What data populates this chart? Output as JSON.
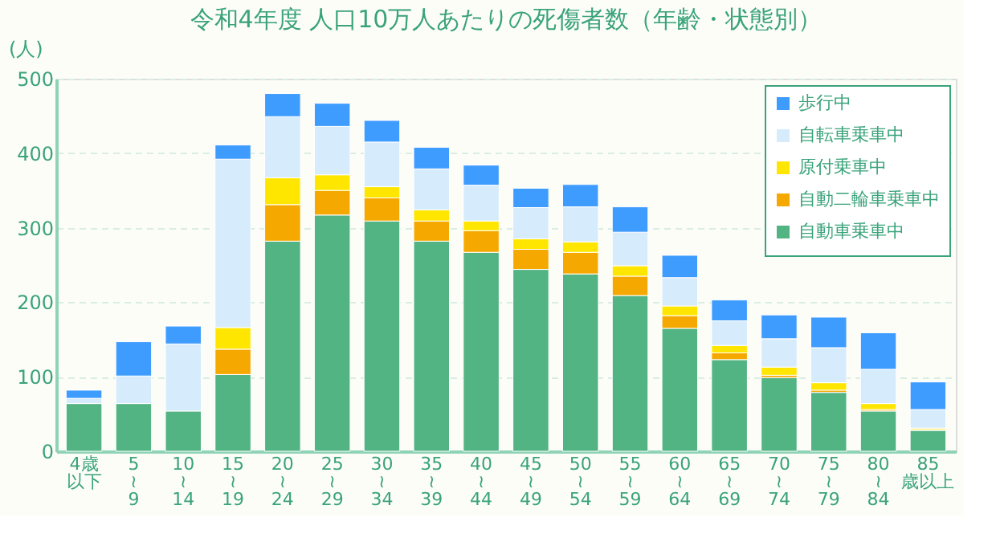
{
  "chart_data": {
    "type": "bar",
    "stacked": true,
    "title": "令和4年度 人口10万人あたりの死傷者数（年齢・状態別）",
    "ylabel": "(人)",
    "categories": [
      "4歳以下",
      "5\n≀\n9",
      "10\n≀\n14",
      "15\n≀\n19",
      "20\n≀\n24",
      "25\n≀\n29",
      "30\n≀\n34",
      "35\n≀\n39",
      "40\n≀\n44",
      "45\n≀\n49",
      "50\n≀\n54",
      "55\n≀\n59",
      "60\n≀\n64",
      "65\n≀\n69",
      "70\n≀\n74",
      "75\n≀\n79",
      "80\n≀\n84",
      "85歳以上"
    ],
    "series": [
      {
        "name": "自動車乗車中",
        "color": "#52b383",
        "values": [
          64,
          64,
          54,
          103,
          282,
          317,
          309,
          282,
          267,
          244,
          238,
          209,
          165,
          123,
          99,
          79,
          54,
          28
        ]
      },
      {
        "name": "自動二輪車乗車中",
        "color": "#f5a800",
        "values": [
          null,
          null,
          null,
          34,
          49,
          33,
          31,
          27,
          29,
          27,
          29,
          26,
          17,
          9,
          3,
          3,
          2,
          1
        ]
      },
      {
        "name": "原付乗車中",
        "color": "#ffe600",
        "values": [
          null,
          null,
          null,
          29,
          36,
          21,
          15,
          15,
          13,
          14,
          14,
          14,
          13,
          10,
          11,
          10,
          8,
          2
        ]
      },
      {
        "name": "自転車乗車中",
        "color": "#d6ecfc",
        "values": [
          7,
          37,
          90,
          226,
          82,
          65,
          60,
          55,
          48,
          42,
          47,
          45,
          38,
          33,
          38,
          47,
          46,
          25
        ]
      },
      {
        "name": "歩行中",
        "color": "#3f9cff",
        "values": [
          11,
          46,
          24,
          19,
          31,
          31,
          29,
          29,
          27,
          26,
          30,
          34,
          30,
          28,
          32,
          41,
          49,
          37
        ]
      }
    ],
    "ylim": [
      0,
      500
    ],
    "yticks": [
      0,
      100,
      200,
      300,
      400,
      500
    ],
    "grid": "y",
    "legend": "top right"
  }
}
